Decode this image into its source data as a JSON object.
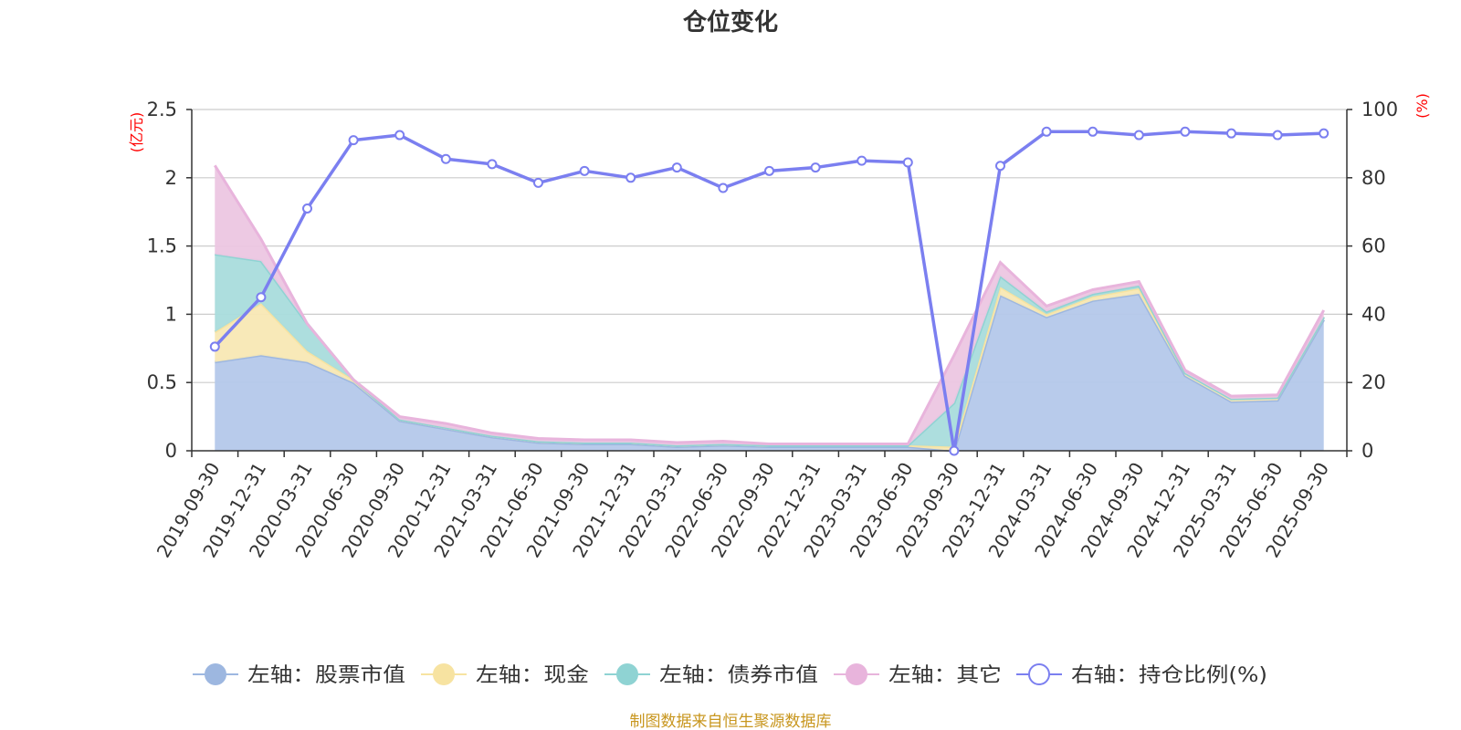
{
  "chart_data": {
    "type": "area",
    "title": "仓位变化",
    "left_axis_unit": "(亿元)",
    "right_axis_unit": "(%)",
    "left_ylim": [
      0,
      2.5
    ],
    "left_ticks": [
      "0",
      "0.5",
      "1",
      "1.5",
      "2",
      "2.5"
    ],
    "right_ylim": [
      0,
      100
    ],
    "right_ticks": [
      "0",
      "20",
      "40",
      "60",
      "80",
      "100"
    ],
    "categories": [
      "2019-09-30",
      "2019-12-31",
      "2020-03-31",
      "2020-06-30",
      "2020-09-30",
      "2020-12-31",
      "2021-03-31",
      "2021-06-30",
      "2021-09-30",
      "2021-12-31",
      "2022-03-31",
      "2022-06-30",
      "2022-09-30",
      "2022-12-31",
      "2023-03-31",
      "2023-06-30",
      "2023-09-30",
      "2023-12-31",
      "2024-03-31",
      "2024-06-30",
      "2024-09-30",
      "2024-12-31",
      "2025-03-31",
      "2025-06-30",
      "2025-09-30"
    ],
    "series": [
      {
        "name": "左轴：股票市值",
        "axis": "left",
        "stacked": true,
        "color": "#9db7e0",
        "fill": "#b4c8ea",
        "values": [
          0.65,
          0.7,
          0.65,
          0.5,
          0.22,
          0.16,
          0.1,
          0.06,
          0.05,
          0.05,
          0.03,
          0.04,
          0.03,
          0.03,
          0.03,
          0.03,
          0.0,
          1.14,
          0.98,
          1.1,
          1.15,
          0.55,
          0.36,
          0.37,
          0.96
        ]
      },
      {
        "name": "左轴：现金",
        "axis": "left",
        "stacked": true,
        "color": "#f7e3a1",
        "fill": "#f8e8b4",
        "values": [
          0.22,
          0.38,
          0.08,
          0.02,
          0.01,
          0.01,
          0.01,
          0.01,
          0.01,
          0.01,
          0.01,
          0.01,
          0.01,
          0.01,
          0.01,
          0.01,
          0.03,
          0.06,
          0.02,
          0.03,
          0.04,
          0.02,
          0.02,
          0.02,
          0.02
        ]
      },
      {
        "name": "左轴：债券市值",
        "axis": "left",
        "stacked": true,
        "color": "#8fd3d3",
        "fill": "#a9dcdc",
        "values": [
          0.57,
          0.31,
          0.2,
          0.0,
          0.0,
          0.0,
          0.0,
          0.0,
          0.0,
          0.0,
          0.0,
          0.0,
          0.0,
          0.0,
          0.0,
          0.0,
          0.32,
          0.08,
          0.02,
          0.02,
          0.02,
          0.0,
          0.0,
          0.0,
          0.0
        ]
      },
      {
        "name": "左轴：其它",
        "axis": "left",
        "stacked": true,
        "color": "#e8b4dc",
        "fill": "#ecc6e2",
        "values": [
          0.65,
          0.16,
          0.0,
          0.0,
          0.02,
          0.03,
          0.02,
          0.02,
          0.02,
          0.02,
          0.02,
          0.02,
          0.01,
          0.01,
          0.01,
          0.01,
          0.35,
          0.1,
          0.04,
          0.03,
          0.03,
          0.02,
          0.02,
          0.02,
          0.05
        ]
      },
      {
        "name": "右轴：持仓比例(%)",
        "axis": "right",
        "stacked": false,
        "color": "#7b7ff0",
        "values": [
          30.5,
          45.0,
          71.0,
          91.0,
          92.5,
          85.5,
          84.0,
          78.5,
          82.0,
          80.0,
          83.0,
          77.0,
          82.0,
          83.0,
          85.0,
          84.5,
          0.0,
          83.5,
          93.5,
          93.5,
          92.5,
          93.5,
          93.0,
          92.5,
          93.0
        ]
      }
    ],
    "legend_position": "bottom"
  },
  "source_text": "制图数据来自恒生聚源数据库"
}
